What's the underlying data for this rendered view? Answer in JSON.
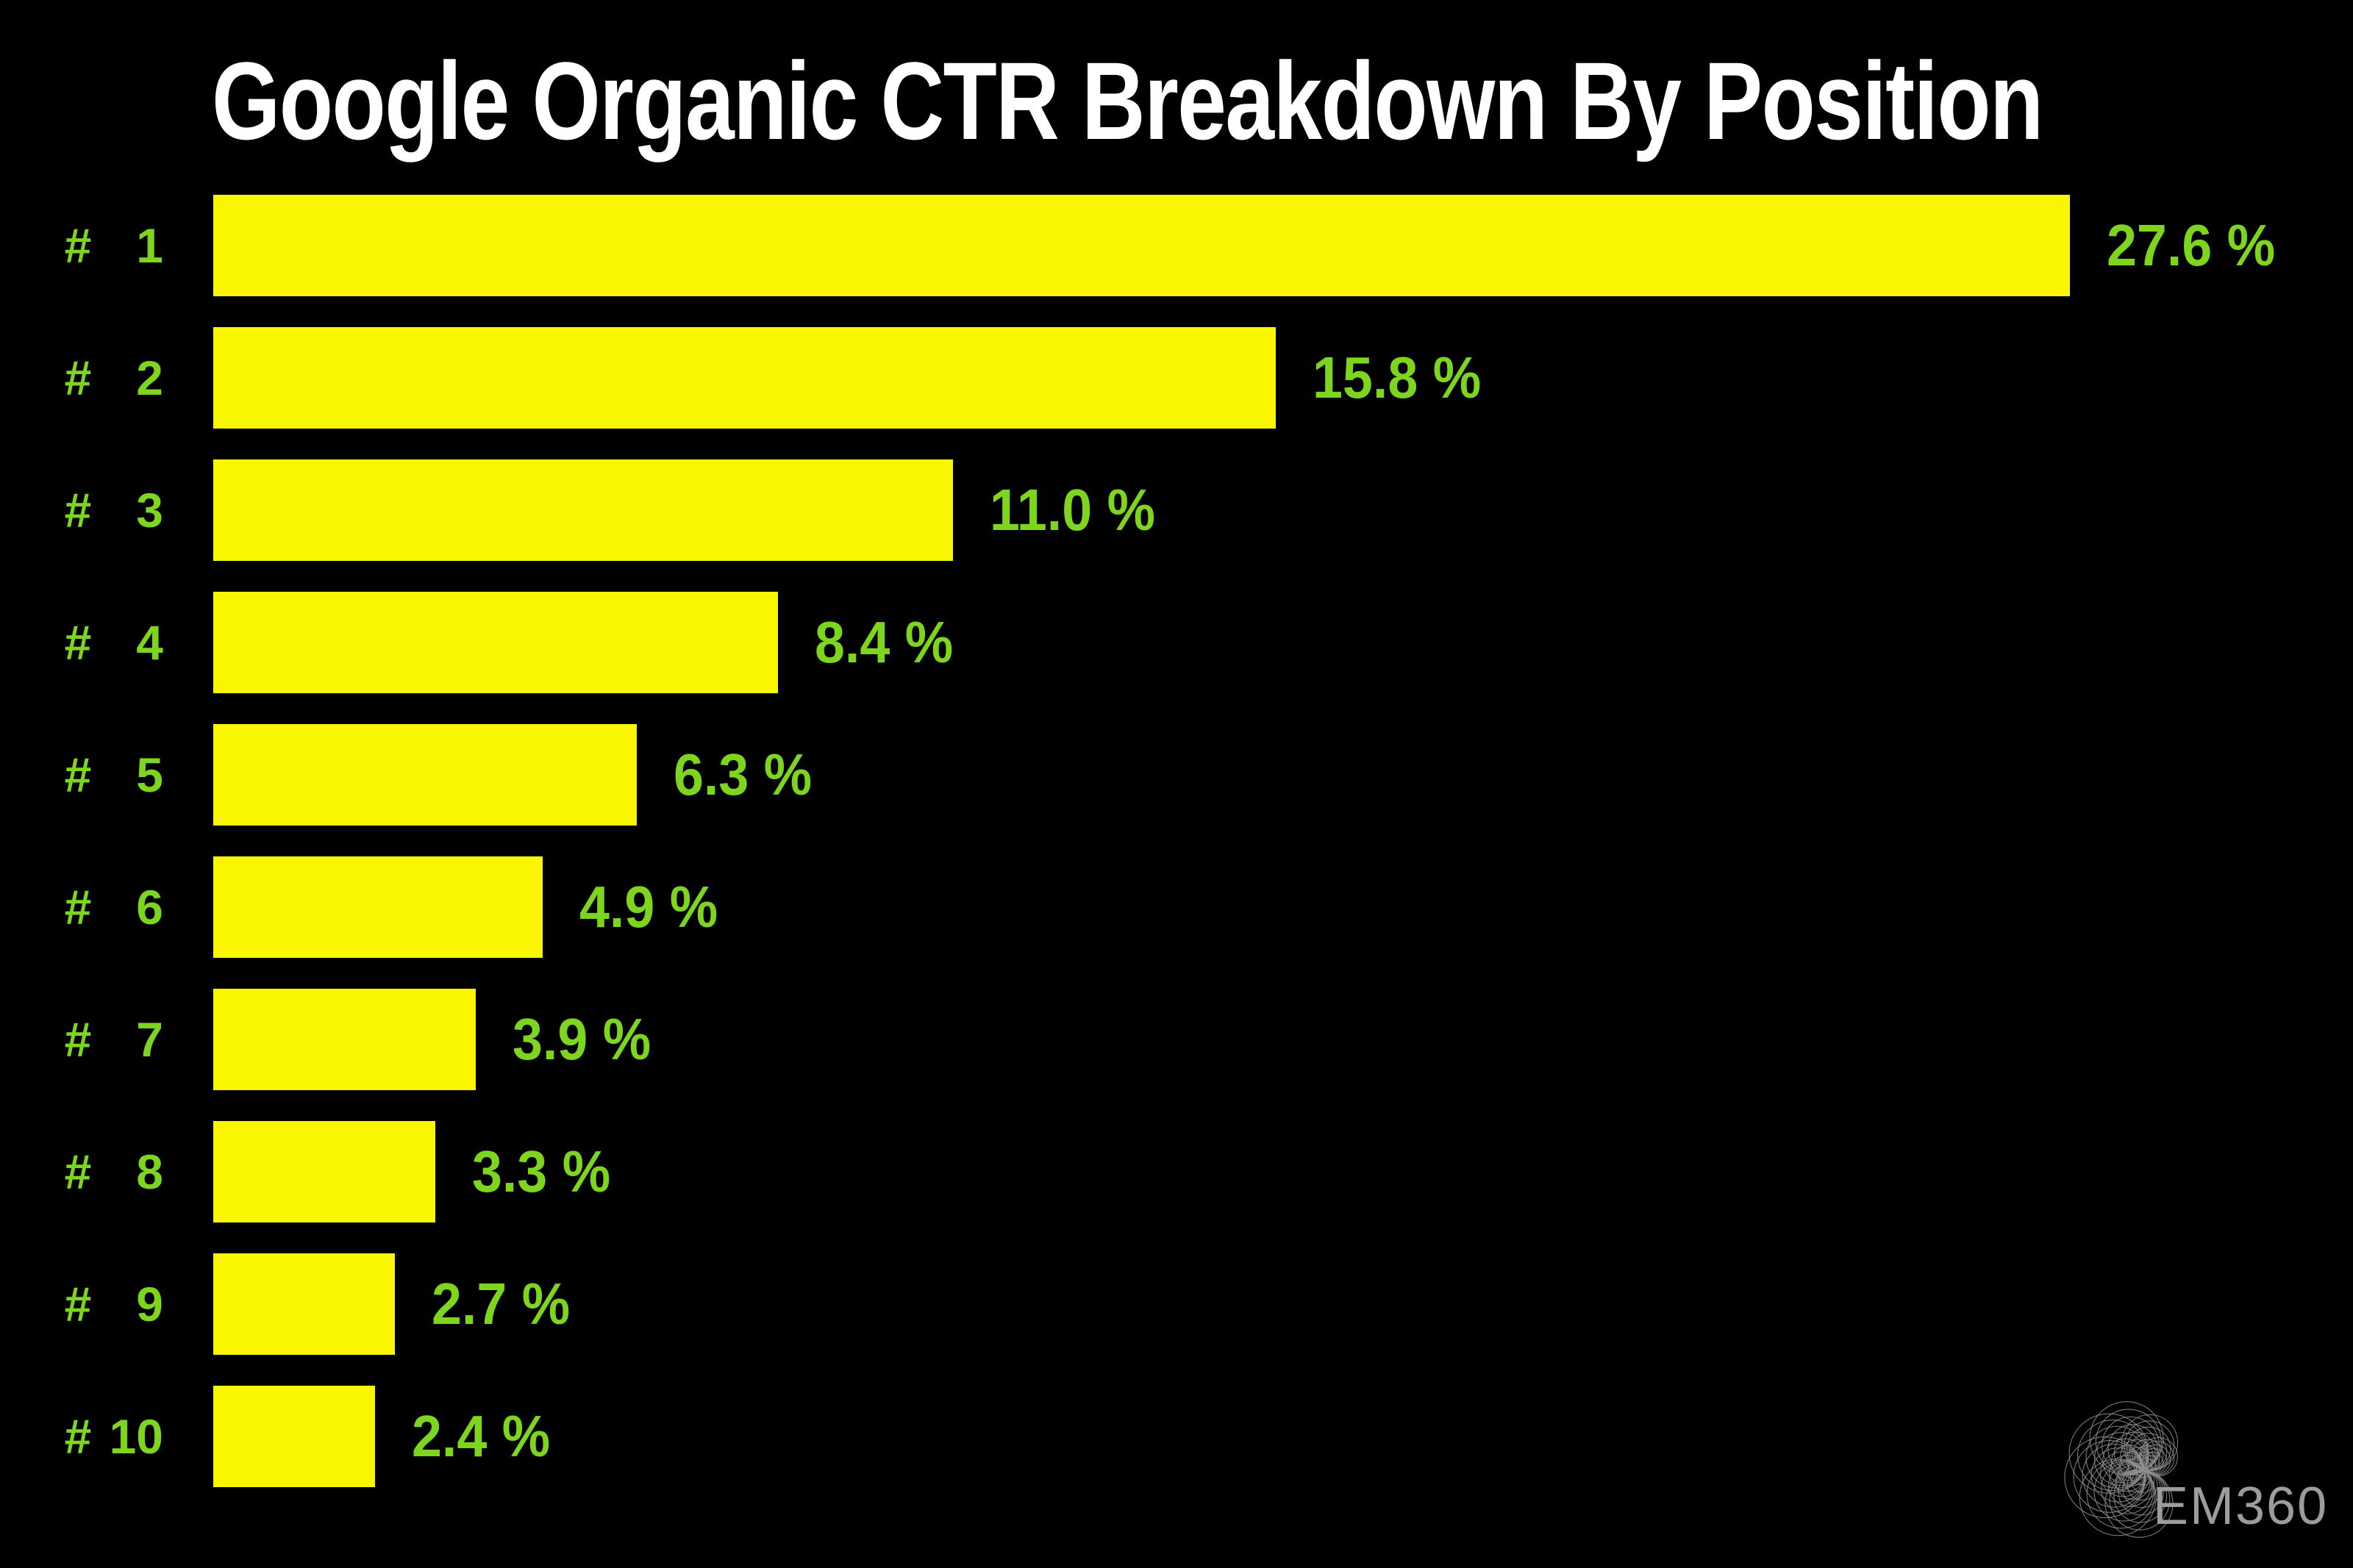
{
  "title": "Google Organic CTR Breakdown By Position",
  "chart_data": {
    "type": "bar",
    "orientation": "horizontal",
    "title": "Google Organic CTR Breakdown By Position",
    "rank_prefix": "#",
    "ranks": [
      "1",
      "2",
      "3",
      "4",
      "5",
      "6",
      "7",
      "8",
      "9",
      "10"
    ],
    "categories": [
      "# 1",
      "# 2",
      "# 3",
      "# 4",
      "# 5",
      "# 6",
      "# 7",
      "# 8",
      "# 9",
      "# 10"
    ],
    "values": [
      27.6,
      15.8,
      11.0,
      8.4,
      6.3,
      4.9,
      3.9,
      3.3,
      2.7,
      2.4
    ],
    "value_labels": [
      "27.6 %",
      "15.8 %",
      "11.0 %",
      "8.4 %",
      "6.3 %",
      "4.9 %",
      "3.9 %",
      "3.3 %",
      "2.7 %",
      "2.4 %"
    ],
    "xlabel": "",
    "ylabel": "",
    "xlim": [
      0,
      27.6
    ],
    "grid": false,
    "legend": false,
    "bar_color": "#FAF500",
    "value_label_color": "#7ED51E",
    "category_label_color": "#7ED51E",
    "title_color": "#FFFFFF",
    "background_color": "#000000"
  },
  "logo": {
    "text": "EM360",
    "color": "#9C9C9C",
    "mark": "concentric-circles-fan"
  },
  "colors": {
    "background": "#000000",
    "bar_yellow": "#FAF500",
    "label_green": "#7ED51E",
    "title_white": "#FFFFFF",
    "logo_gray": "#9C9C9C",
    "logo_stroke": "#8E8E8E"
  }
}
